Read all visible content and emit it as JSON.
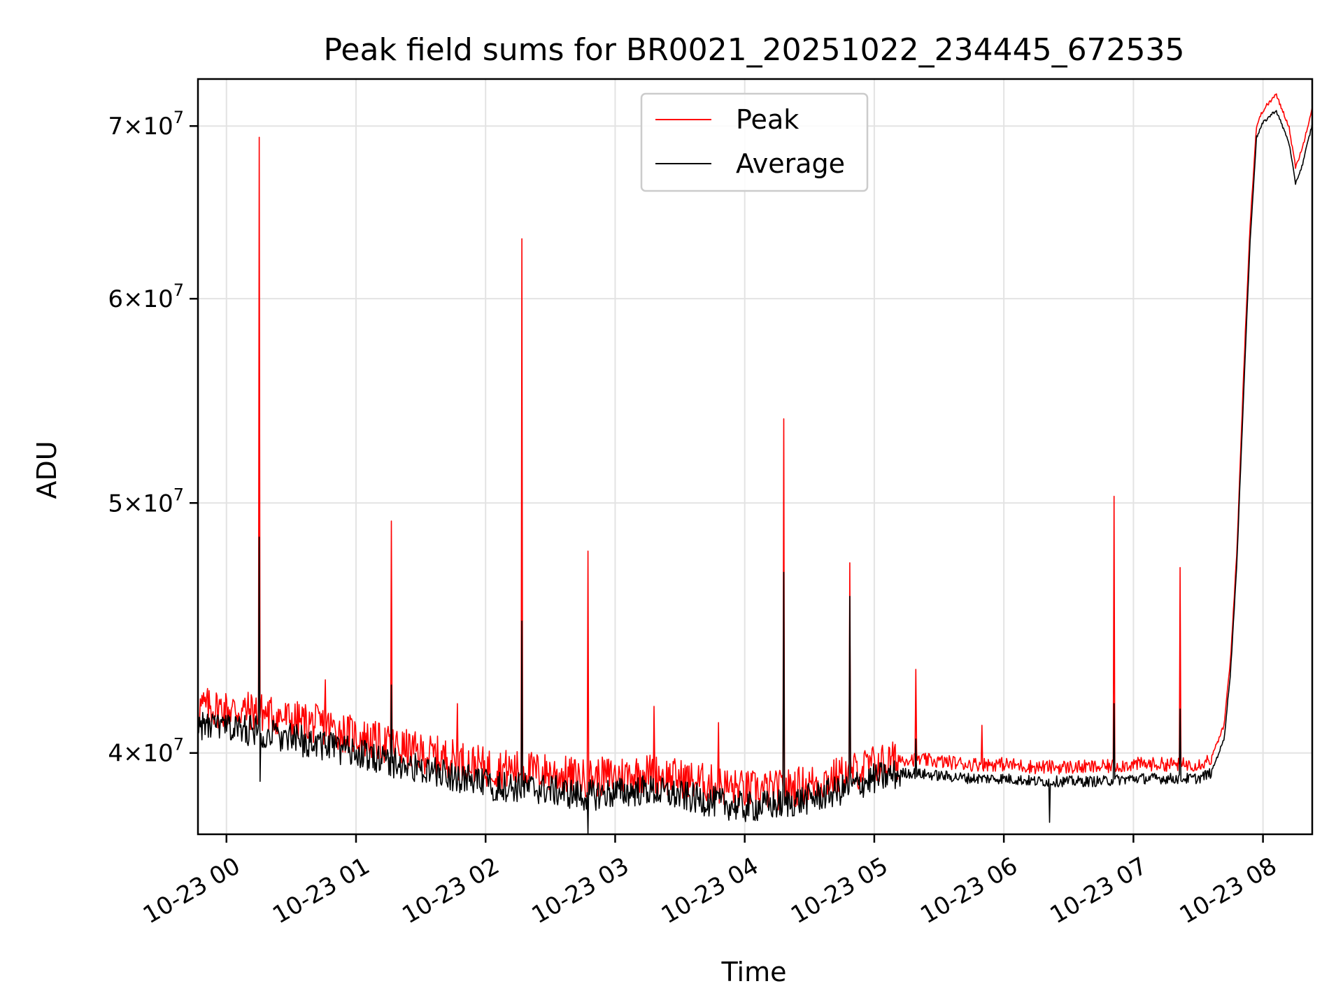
{
  "chart_data": {
    "type": "line",
    "title": "Peak field sums for BR0021_20251022_234445_672535",
    "xlabel": "Time",
    "ylabel": "ADU",
    "scale_y": "log",
    "x_range_hours": [
      -0.22,
      8.38
    ],
    "ylim": [
      37200000,
      73000000
    ],
    "x_ticks": [
      {
        "hour": 0,
        "label": "10-23 00"
      },
      {
        "hour": 1,
        "label": "10-23 01"
      },
      {
        "hour": 2,
        "label": "10-23 02"
      },
      {
        "hour": 3,
        "label": "10-23 03"
      },
      {
        "hour": 4,
        "label": "10-23 04"
      },
      {
        "hour": 5,
        "label": "10-23 05"
      },
      {
        "hour": 6,
        "label": "10-23 06"
      },
      {
        "hour": 7,
        "label": "10-23 07"
      },
      {
        "hour": 8,
        "label": "10-23 08"
      }
    ],
    "y_ticks": [
      {
        "value": 40000000,
        "mantissa": "4",
        "exponent": "7"
      },
      {
        "value": 50000000,
        "mantissa": "5",
        "exponent": "7"
      },
      {
        "value": 60000000,
        "mantissa": "6",
        "exponent": "7"
      },
      {
        "value": 70000000,
        "mantissa": "7",
        "exponent": "7"
      }
    ],
    "y_tick_base": "10",
    "grid": true,
    "legend_position": "upper-center",
    "series": [
      {
        "name": "Peak",
        "color": "#ff0000",
        "x": [
          -0.22,
          0.0,
          0.25,
          0.5,
          0.75,
          1.0,
          1.25,
          1.5,
          1.75,
          2.0,
          2.25,
          2.5,
          2.75,
          3.0,
          3.25,
          3.5,
          3.75,
          4.0,
          4.25,
          4.5,
          4.75,
          5.0,
          5.25,
          5.5,
          5.75,
          6.0,
          6.25,
          6.5,
          6.75,
          7.0,
          7.25,
          7.5,
          7.6,
          7.7,
          7.75,
          7.8,
          7.85,
          7.9,
          7.95,
          8.0,
          8.1,
          8.2,
          8.25,
          8.3,
          8.38
        ],
        "y": [
          41700000,
          41600000,
          41500000,
          41200000,
          41000000,
          40600000,
          40300000,
          40000000,
          39800000,
          39500000,
          39400000,
          39300000,
          39100000,
          39200000,
          39300000,
          39100000,
          38900000,
          38700000,
          38700000,
          38900000,
          39200000,
          39600000,
          39800000,
          39700000,
          39600000,
          39600000,
          39500000,
          39500000,
          39500000,
          39600000,
          39600000,
          39600000,
          39800000,
          41000000,
          43500000,
          48000000,
          56000000,
          64000000,
          70000000,
          71000000,
          72000000,
          70000000,
          67500000,
          68500000,
          71200000
        ],
        "spikes": [
          {
            "x": 0.25,
            "y": 69300000
          },
          {
            "x": 0.76,
            "y": 42700000
          },
          {
            "x": 1.27,
            "y": 49200000
          },
          {
            "x": 1.78,
            "y": 41800000
          },
          {
            "x": 2.28,
            "y": 63300000
          },
          {
            "x": 2.79,
            "y": 47900000
          },
          {
            "x": 3.3,
            "y": 41700000
          },
          {
            "x": 3.8,
            "y": 41100000
          },
          {
            "x": 4.3,
            "y": 53900000
          },
          {
            "x": 4.81,
            "y": 47400000
          },
          {
            "x": 5.32,
            "y": 43100000
          },
          {
            "x": 5.83,
            "y": 41000000
          },
          {
            "x": 6.85,
            "y": 50300000
          },
          {
            "x": 7.36,
            "y": 47200000
          }
        ]
      },
      {
        "name": "Average",
        "color": "#000000",
        "x": [
          -0.22,
          0.0,
          0.25,
          0.5,
          0.75,
          1.0,
          1.25,
          1.5,
          1.75,
          2.0,
          2.25,
          2.5,
          2.75,
          3.0,
          3.25,
          3.5,
          3.75,
          4.0,
          4.25,
          4.5,
          4.75,
          5.0,
          5.25,
          5.5,
          5.75,
          6.0,
          6.25,
          6.5,
          6.75,
          7.0,
          7.25,
          7.5,
          7.6,
          7.7,
          7.75,
          7.8,
          7.85,
          7.9,
          7.95,
          8.0,
          8.1,
          8.2,
          8.25,
          8.3,
          8.38
        ],
        "y": [
          41000000,
          40900000,
          40800000,
          40500000,
          40300000,
          40000000,
          39700000,
          39400000,
          39200000,
          38900000,
          38800000,
          38700000,
          38500000,
          38600000,
          38700000,
          38500000,
          38300000,
          38100000,
          38200000,
          38400000,
          38700000,
          39100000,
          39300000,
          39200000,
          39100000,
          39100000,
          39000000,
          39000000,
          39000000,
          39100000,
          39100000,
          39100000,
          39300000,
          40500000,
          43000000,
          47500000,
          55000000,
          63000000,
          69300000,
          70200000,
          71000000,
          69000000,
          66500000,
          67500000,
          70100000
        ],
        "spikes": [
          {
            "x": 0.25,
            "y": 48500000
          },
          {
            "x": 1.27,
            "y": 42500000
          },
          {
            "x": 2.28,
            "y": 45000000
          },
          {
            "x": 2.79,
            "y": 41800000
          },
          {
            "x": 4.3,
            "y": 47000000
          },
          {
            "x": 4.81,
            "y": 46000000
          },
          {
            "x": 5.32,
            "y": 40500000
          },
          {
            "x": 6.85,
            "y": 41800000
          },
          {
            "x": 7.36,
            "y": 41600000
          }
        ],
        "dips": [
          {
            "x": 0.26,
            "y": 39000000
          },
          {
            "x": 2.79,
            "y": 37200000
          },
          {
            "x": 6.35,
            "y": 37600000
          }
        ]
      }
    ]
  }
}
